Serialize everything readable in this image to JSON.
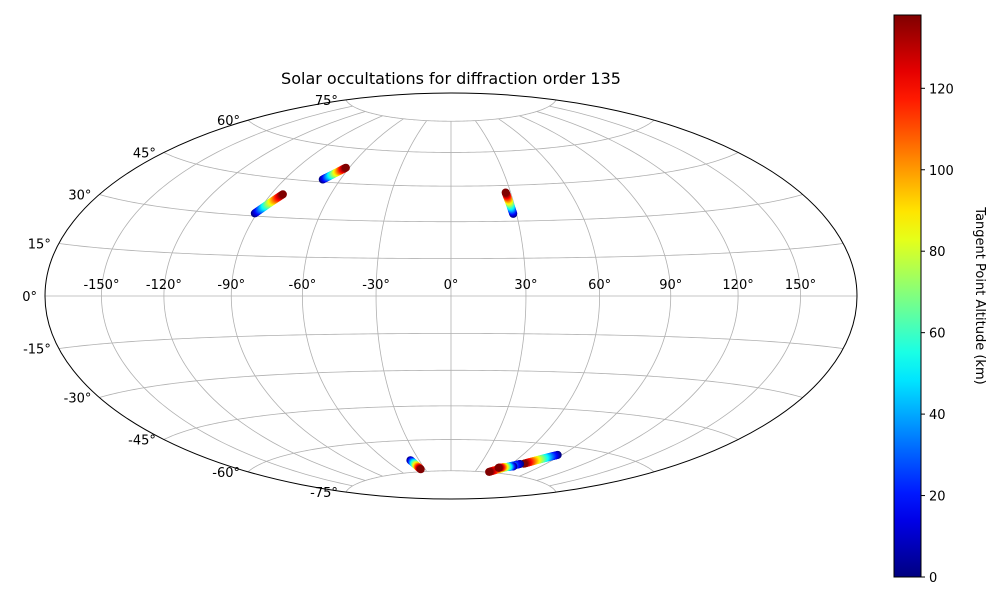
{
  "chart_data": {
    "type": "scatter",
    "projection": "hammer",
    "title": "Solar occultations for diffraction order 135",
    "grid": true,
    "lon_ticks": [
      -150,
      -120,
      -90,
      -60,
      -30,
      0,
      30,
      60,
      90,
      120,
      150
    ],
    "lat_ticks": [
      -75,
      -60,
      -45,
      -30,
      -15,
      0,
      15,
      30,
      45,
      60,
      75
    ],
    "lon_tick_labels": [
      "-150°",
      "-120°",
      "-90°",
      "-60°",
      "-30°",
      "0°",
      "30°",
      "60°",
      "90°",
      "120°",
      "150°"
    ],
    "lat_tick_labels": [
      "-75°",
      "-60°",
      "-45°",
      "-30°",
      "-15°",
      "0°",
      "15°",
      "30°",
      "45°",
      "60°",
      "75°"
    ],
    "colorbar": {
      "label": "Tangent Point Altitude (km)",
      "range": [
        0,
        138
      ],
      "ticks": [
        0,
        20,
        40,
        60,
        80,
        100,
        120
      ],
      "colormap": "jet"
    },
    "tracks": [
      {
        "start": {
          "lon": -91,
          "lat": 31,
          "alt": 0
        },
        "end": {
          "lon": -84,
          "lat": 39,
          "alt": 138
        }
      },
      {
        "start": {
          "lon": -69.5,
          "lat": 46,
          "alt": 0
        },
        "end": {
          "lon": -62,
          "lat": 51.5,
          "alt": 138
        }
      },
      {
        "start": {
          "lon": 28.5,
          "lat": 33,
          "alt": 0
        },
        "end": {
          "lon": 27.5,
          "lat": 42,
          "alt": 138
        }
      },
      {
        "start": {
          "lon": -38,
          "lat": -69.2,
          "alt": 0
        },
        "end": {
          "lon": -35,
          "lat": -73.8,
          "alt": 138
        }
      },
      {
        "start": {
          "lon": 87,
          "lat": -64,
          "alt": 0
        },
        "end": {
          "lon": 71,
          "lat": -69.5,
          "alt": 138
        }
      },
      {
        "start": {
          "lon": 68,
          "lat": -69.8,
          "alt": 0
        },
        "end": {
          "lon": 47,
          "lat": -74.8,
          "alt": 138
        }
      },
      {
        "start": {
          "lon": 65,
          "lat": -71.2,
          "alt": 0
        },
        "end": {
          "lon": 52,
          "lat": -72.5,
          "alt": 138
        }
      }
    ]
  }
}
